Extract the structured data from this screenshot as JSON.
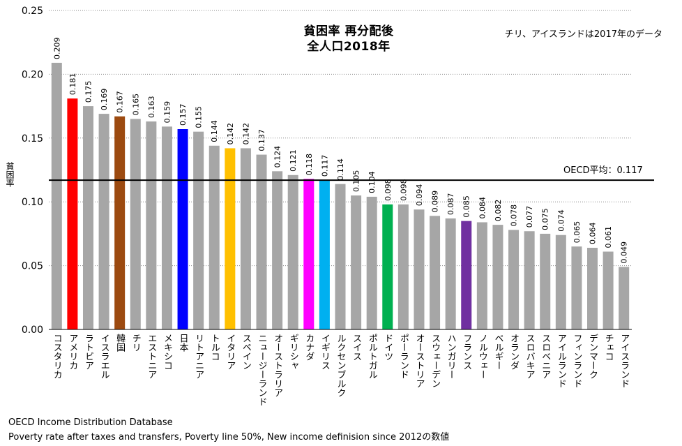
{
  "chart_data": {
    "type": "bar",
    "title": "貧困率 再分配後",
    "subtitle": "全人口2018年",
    "note": "チリ、アイスランドは2017年のデータ",
    "ylabel": "貧困率",
    "ylim": [
      0,
      0.25
    ],
    "yticks": [
      "0.00",
      "0.05",
      "0.10",
      "0.15",
      "0.20",
      "0.25"
    ],
    "grid": "dotted horizontal",
    "reference_line": {
      "value": 0.117,
      "label": "OECD平均：0.117"
    },
    "categories": [
      "コスタリカ",
      "アメリカ",
      "ラトビア",
      "イスラエル",
      "韓国",
      "チリ",
      "エストニア",
      "メキシコ",
      "日本",
      "リトアニア",
      "トルコ",
      "イタリア",
      "スペイン",
      "ニュージーランド",
      "オーストラリア",
      "ギリシャ",
      "カナダ",
      "イギリス",
      "ルクセンブルク",
      "スイス",
      "ポルトガル",
      "ドイツ",
      "ポーランド",
      "オーストリア",
      "スウェーデン",
      "ハンガリー",
      "フランス",
      "ノルウェー",
      "ベルギー",
      "オランダ",
      "スロバキア",
      "スロベニア",
      "アイルランド",
      "フィンランド",
      "デンマーク",
      "チェコ",
      "アイスランド"
    ],
    "values": [
      0.209,
      0.181,
      0.175,
      0.169,
      0.167,
      0.165,
      0.163,
      0.159,
      0.157,
      0.155,
      0.144,
      0.142,
      0.142,
      0.137,
      0.124,
      0.121,
      0.118,
      0.117,
      0.114,
      0.105,
      0.104,
      0.098,
      0.098,
      0.094,
      0.089,
      0.087,
      0.085,
      0.084,
      0.082,
      0.078,
      0.077,
      0.075,
      0.074,
      0.065,
      0.064,
      0.061,
      0.049
    ],
    "value_labels": [
      "0.209",
      "0.181",
      "0.175",
      "0.169",
      "0.167",
      "0.165",
      "0.163",
      "0.159",
      "0.157",
      "0.155",
      "0.144",
      "0.142",
      "0.142",
      "0.137",
      "0.124",
      "0.121",
      "0.118",
      "0.117",
      "0.114",
      "0.105",
      "0.104",
      "0.098",
      "0.098",
      "0.094",
      "0.089",
      "0.087",
      "0.085",
      "0.084",
      "0.082",
      "0.078",
      "0.077",
      "0.075",
      "0.074",
      "0.065",
      "0.064",
      "0.061",
      "0.049"
    ],
    "default_color": "#a6a6a6",
    "highlight_colors": {
      "アメリカ": "#ff0000",
      "韓国": "#9c4a10",
      "日本": "#0000ff",
      "イタリア": "#ffc000",
      "カナダ": "#ff00ff",
      "イギリス": "#00b0f0",
      "ドイツ": "#00b050",
      "フランス": "#7030a0"
    }
  },
  "footer": {
    "line1": "OECD Income Distribution Database",
    "line2": "Poverty rate after taxes and transfers, Poverty line 50%, New income definision since 2012の数値"
  }
}
